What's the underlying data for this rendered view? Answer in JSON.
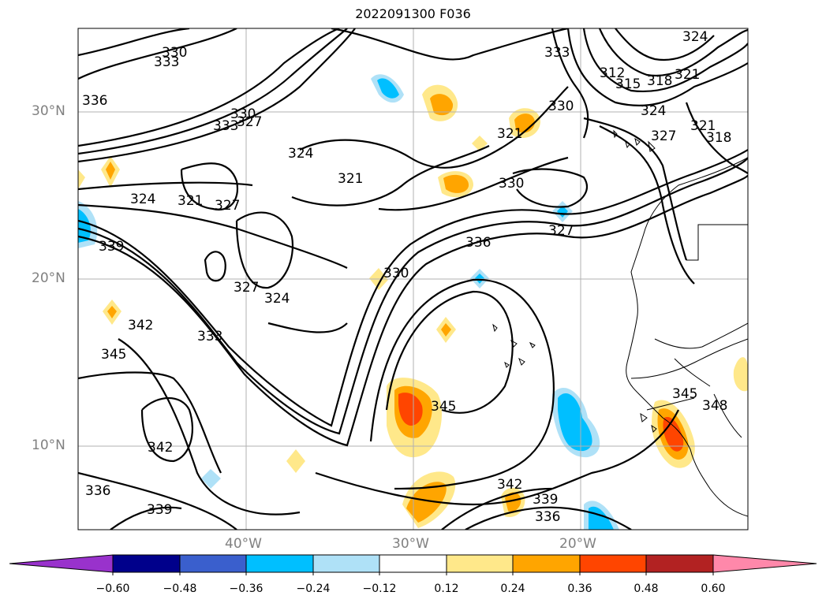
{
  "title": "2022091300 F036",
  "lat_labels": [
    "30°N",
    "20°N",
    "10°N"
  ],
  "lon_labels": [
    "40°W",
    "30°W",
    "20°W"
  ],
  "contour_labels": [
    "330",
    "333",
    "336",
    "333",
    "330",
    "327",
    "324",
    "321",
    "324",
    "321",
    "327",
    "339",
    "327",
    "324",
    "330",
    "336",
    "342",
    "345",
    "333",
    "342",
    "339",
    "336",
    "345",
    "342",
    "339",
    "336",
    "321",
    "330",
    "327",
    "330",
    "333",
    "312",
    "315",
    "318",
    "321",
    "324",
    "324",
    "327",
    "321",
    "318",
    "345",
    "348"
  ],
  "colorbar": {
    "ticks": [
      "−0.60",
      "−0.48",
      "−0.36",
      "−0.24",
      "−0.12",
      "0.12",
      "0.24",
      "0.36",
      "0.48",
      "0.60"
    ],
    "colors": [
      "#9932cc",
      "#00008b",
      "#3a5fcd",
      "#00bfff",
      "#afe1f7",
      "#ffffff",
      "#ffe88a",
      "#ffa500",
      "#ff4500",
      "#b22222",
      "#ff88aa"
    ]
  }
}
